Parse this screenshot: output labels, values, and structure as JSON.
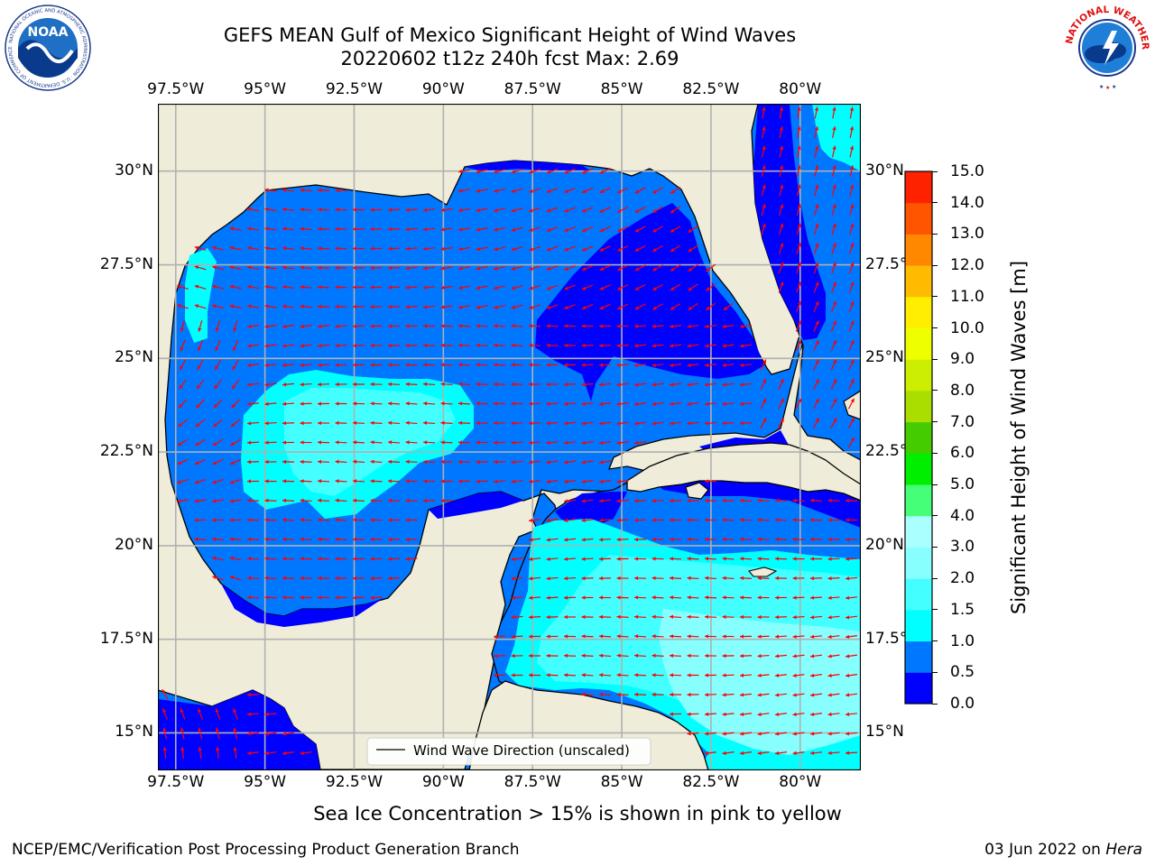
{
  "title": {
    "line1": "GEFS MEAN Gulf of Mexico Significant Height of Wind Waves",
    "line2": "20220602 t12z 240h fcst   Max: 2.69"
  },
  "map": {
    "lon_labels": [
      "97.5°W",
      "95°W",
      "92.5°W",
      "90°W",
      "87.5°W",
      "85°W",
      "82.5°W",
      "80°W"
    ],
    "lat_labels": [
      "30°N",
      "27.5°N",
      "25°N",
      "22.5°N",
      "20°N",
      "17.5°N",
      "15°N"
    ],
    "lon_range": [
      -98.0,
      -78.3
    ],
    "lat_range": [
      14.0,
      31.8
    ],
    "legend_label": "Wind Wave Direction (unscaled)",
    "land_color": "#efedd9",
    "grid_color": "#b0b0b0",
    "arrow_color": "#ff0000"
  },
  "colorbar": {
    "label": "Significant Height of Wind Waves [m]",
    "ticks": [
      "0.0",
      "0.5",
      "1.0",
      "1.5",
      "2.0",
      "3.0",
      "4.0",
      "5.0",
      "6.0",
      "7.0",
      "8.0",
      "9.0",
      "10.0",
      "11.0",
      "12.0",
      "13.0",
      "14.0",
      "15.0"
    ],
    "colors": [
      "#0000ff",
      "#0077ff",
      "#00ffff",
      "#44ffff",
      "#88ffff",
      "#aaffff",
      "#44ff77",
      "#00ee00",
      "#44cc00",
      "#aadd00",
      "#ccee00",
      "#eeff00",
      "#ffee00",
      "#ffbb00",
      "#ff8800",
      "#ff5500",
      "#ff2200",
      "#ff0000"
    ]
  },
  "bottom_note": "Sea Ice Concentration > 15% is shown in pink to yellow",
  "footer": {
    "left": "NCEP/EMC/Verification Post Processing Product Generation Branch",
    "date": "03 Jun 2022 on",
    "host": "Hera"
  },
  "logos": {
    "noaa_text": "NOAA",
    "noaa_ring": "NATIONAL OCEANIC AND ATMOSPHERIC ADMINISTRATION · U.S. DEPARTMENT OF COMMERCE",
    "nws_ring": "NATIONAL WEATHER SERVICE"
  }
}
